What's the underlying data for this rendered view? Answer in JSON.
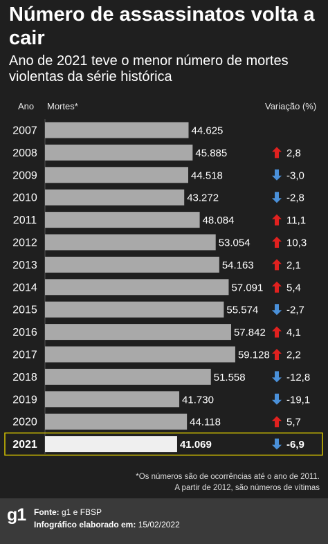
{
  "title": "Número de assassinatos volta a cair",
  "subtitle": "Ano de 2021 teve o menor número de mortes violentas da série histórica",
  "headers": {
    "year": "Ano",
    "deaths": "Mortes*",
    "variation": "Variação (%)"
  },
  "footnote": {
    "line1": "*Os números são de ocorrências até o ano de 2011.",
    "line2": "A partir de 2012, são números de vítimas"
  },
  "footer": {
    "logo": "g1",
    "source_label": "Fonte:",
    "source_value": "g1 e FBSP",
    "date_label": "Infográfico elaborado em:",
    "date_value": "15/02/2022"
  },
  "colors": {
    "background": "#1f1f1f",
    "bar": "#a9a9a9",
    "bar_highlight": "#efefef",
    "highlight_border": "#d4c200",
    "arrow_up": "#e0211f",
    "arrow_down": "#4a90d9",
    "footer": "#3a3a3a"
  },
  "chart_data": {
    "type": "bar",
    "orientation": "horizontal",
    "xlim": [
      0,
      60000
    ],
    "highlight": "2021",
    "categories": [
      "2007",
      "2008",
      "2009",
      "2010",
      "2011",
      "2012",
      "2013",
      "2014",
      "2015",
      "2016",
      "2017",
      "2018",
      "2019",
      "2020",
      "2021"
    ],
    "values": [
      44625,
      45885,
      44518,
      43272,
      48084,
      53054,
      54163,
      57091,
      55574,
      57842,
      59128,
      51558,
      41730,
      44118,
      41069
    ],
    "value_labels": [
      "44.625",
      "45.885",
      "44.518",
      "43.272",
      "48.084",
      "53.054",
      "54.163",
      "57.091",
      "55.574",
      "57.842",
      "59.128",
      "51.558",
      "41.730",
      "44.118",
      "41.069"
    ],
    "variation": [
      "",
      "2,8",
      "-3,0",
      "-2,8",
      "11,1",
      "10,3",
      "2,1",
      "5,4",
      "-2,7",
      "4,1",
      "2,2",
      "-12,8",
      "-19,1",
      "5,7",
      "-6,9"
    ],
    "variation_direction": [
      "",
      "up",
      "down",
      "down",
      "up",
      "up",
      "up",
      "up",
      "down",
      "up",
      "up",
      "down",
      "down",
      "up",
      "down"
    ]
  }
}
